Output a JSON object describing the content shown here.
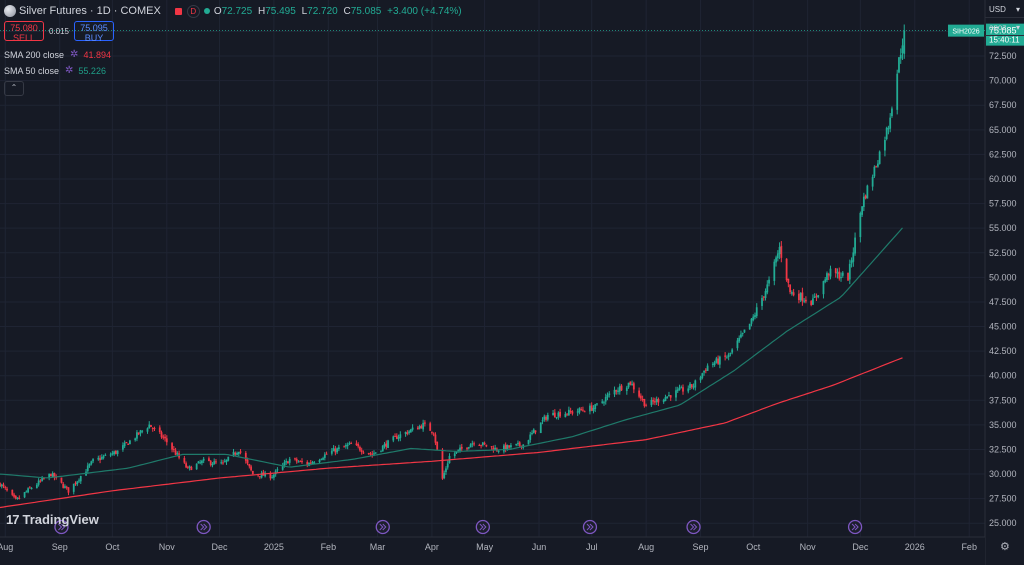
{
  "header": {
    "title": "Silver Futures · 1D · COMEX",
    "interval_badge": "D",
    "ohlc": {
      "o_label": "O",
      "o": "72.725",
      "h_label": "H",
      "h": "75.495",
      "l_label": "L",
      "l": "72.720",
      "c_label": "C",
      "c": "75.085",
      "change": "+3.400 (+4.74%)"
    }
  },
  "trade": {
    "sell_price": "75.080",
    "sell_label": "SELL",
    "spread": "0.015",
    "buy_price": "75.095",
    "buy_label": "BUY"
  },
  "indicators": [
    {
      "label": "SMA 200 close",
      "value": "41.894",
      "color": "#f23645"
    },
    {
      "label": "SMA 50 close",
      "value": "55.226",
      "color": "#22ab94"
    }
  ],
  "right_panel": {
    "currency": "USD",
    "scale": "apoz"
  },
  "price_marker": {
    "symbol": "SIH2026",
    "price": "75.085",
    "countdown": "15:40:11"
  },
  "branding": {
    "logo_text": "TradingView"
  },
  "colors": {
    "background": "#161a25",
    "grid": "#1f2433",
    "up": "#22ab94",
    "down": "#f23645",
    "sma200": "#f23645",
    "sma50": "#1f7a6a",
    "event": "#7e57c2"
  },
  "chart_data": {
    "type": "candlestick",
    "title": "Silver Futures · 1D · COMEX",
    "x_start": "2024-07-29",
    "x_end": "2026-02-10",
    "ylim": [
      23.6,
      78.2
    ],
    "y_ticks": [
      25.0,
      27.5,
      30.0,
      32.5,
      35.0,
      37.5,
      40.0,
      42.5,
      45.0,
      47.5,
      50.0,
      52.5,
      55.0,
      57.5,
      60.0,
      62.5,
      65.0,
      67.5,
      70.0,
      72.5,
      75.0
    ],
    "x_ticks": [
      {
        "label": "Aug",
        "date": "2024-08-01"
      },
      {
        "label": "Sep",
        "date": "2024-09-01"
      },
      {
        "label": "Oct",
        "date": "2024-10-01"
      },
      {
        "label": "Nov",
        "date": "2024-11-01"
      },
      {
        "label": "Dec",
        "date": "2024-12-01"
      },
      {
        "label": "2025",
        "date": "2025-01-01"
      },
      {
        "label": "Feb",
        "date": "2025-02-01"
      },
      {
        "label": "Mar",
        "date": "2025-03-01"
      },
      {
        "label": "Apr",
        "date": "2025-04-01"
      },
      {
        "label": "May",
        "date": "2025-05-01"
      },
      {
        "label": "Jun",
        "date": "2025-06-01"
      },
      {
        "label": "Jul",
        "date": "2025-07-01"
      },
      {
        "label": "Aug",
        "date": "2025-08-01"
      },
      {
        "label": "Sep",
        "date": "2025-09-01"
      },
      {
        "label": "Oct",
        "date": "2025-10-01"
      },
      {
        "label": "Nov",
        "date": "2025-11-01"
      },
      {
        "label": "Dec",
        "date": "2025-12-01"
      },
      {
        "label": "2026",
        "date": "2026-01-01"
      },
      {
        "label": "Feb",
        "date": "2026-02-01"
      }
    ],
    "close_anchors": [
      [
        "2024-07-29",
        29.0
      ],
      [
        "2024-08-07",
        27.3
      ],
      [
        "2024-08-15",
        28.5
      ],
      [
        "2024-08-27",
        30.0
      ],
      [
        "2024-09-06",
        28.3
      ],
      [
        "2024-09-20",
        31.3
      ],
      [
        "2024-10-04",
        32.3
      ],
      [
        "2024-10-22",
        35.0
      ],
      [
        "2024-10-31",
        33.5
      ],
      [
        "2024-11-13",
        30.5
      ],
      [
        "2024-11-22",
        31.3
      ],
      [
        "2024-12-03",
        31.0
      ],
      [
        "2024-12-12",
        32.5
      ],
      [
        "2024-12-20",
        30.0
      ],
      [
        "2024-12-31",
        29.8
      ],
      [
        "2025-01-10",
        31.5
      ],
      [
        "2025-01-20",
        31.0
      ],
      [
        "2025-02-03",
        32.3
      ],
      [
        "2025-02-14",
        33.0
      ],
      [
        "2025-02-26",
        32.0
      ],
      [
        "2025-03-12",
        33.8
      ],
      [
        "2025-03-27",
        35.0
      ],
      [
        "2025-04-02",
        34.3
      ],
      [
        "2025-04-07",
        29.5
      ],
      [
        "2025-04-11",
        31.8
      ],
      [
        "2025-04-25",
        33.3
      ],
      [
        "2025-05-08",
        32.5
      ],
      [
        "2025-05-23",
        33.0
      ],
      [
        "2025-06-06",
        36.0
      ],
      [
        "2025-06-20",
        36.3
      ],
      [
        "2025-07-03",
        36.8
      ],
      [
        "2025-07-14",
        38.5
      ],
      [
        "2025-07-23",
        39.3
      ],
      [
        "2025-08-01",
        37.0
      ],
      [
        "2025-08-14",
        38.0
      ],
      [
        "2025-08-28",
        39.0
      ],
      [
        "2025-09-05",
        41.0
      ],
      [
        "2025-09-17",
        42.0
      ],
      [
        "2025-09-30",
        45.5
      ],
      [
        "2025-10-10",
        49.5
      ],
      [
        "2025-10-16",
        53.0
      ],
      [
        "2025-10-22",
        48.5
      ],
      [
        "2025-11-04",
        47.5
      ],
      [
        "2025-11-13",
        50.5
      ],
      [
        "2025-11-24",
        50.0
      ],
      [
        "2025-12-02",
        57.5
      ],
      [
        "2025-12-10",
        61.5
      ],
      [
        "2025-12-17",
        65.5
      ],
      [
        "2025-12-23",
        72.0
      ],
      [
        "2025-12-26",
        75.085
      ]
    ],
    "series": [
      {
        "name": "SMA 200 close",
        "color": "#f23645",
        "points": [
          [
            "2024-07-29",
            26.6
          ],
          [
            "2024-10-01",
            28.3
          ],
          [
            "2024-12-01",
            29.6
          ],
          [
            "2025-02-01",
            30.6
          ],
          [
            "2025-04-01",
            31.3
          ],
          [
            "2025-06-01",
            32.2
          ],
          [
            "2025-08-01",
            33.5
          ],
          [
            "2025-09-15",
            35.2
          ],
          [
            "2025-10-15",
            37.2
          ],
          [
            "2025-11-15",
            39.0
          ],
          [
            "2025-12-26",
            41.894
          ]
        ]
      },
      {
        "name": "SMA 50 close",
        "color": "#1f7a6a",
        "points": [
          [
            "2024-07-29",
            30.0
          ],
          [
            "2024-08-25",
            29.6
          ],
          [
            "2024-10-10",
            30.6
          ],
          [
            "2024-11-10",
            32.0
          ],
          [
            "2024-12-05",
            32.0
          ],
          [
            "2025-01-10",
            30.7
          ],
          [
            "2025-02-15",
            31.5
          ],
          [
            "2025-03-20",
            32.6
          ],
          [
            "2025-04-15",
            32.3
          ],
          [
            "2025-05-15",
            32.5
          ],
          [
            "2025-06-20",
            33.8
          ],
          [
            "2025-07-20",
            35.5
          ],
          [
            "2025-08-20",
            37.0
          ],
          [
            "2025-09-20",
            40.5
          ],
          [
            "2025-10-20",
            44.5
          ],
          [
            "2025-11-20",
            48.0
          ],
          [
            "2025-12-26",
            55.226
          ]
        ]
      }
    ],
    "event_dates": [
      "2024-09-02",
      "2024-11-22",
      "2025-03-04",
      "2025-04-30",
      "2025-06-30",
      "2025-08-28",
      "2025-11-28"
    ]
  }
}
